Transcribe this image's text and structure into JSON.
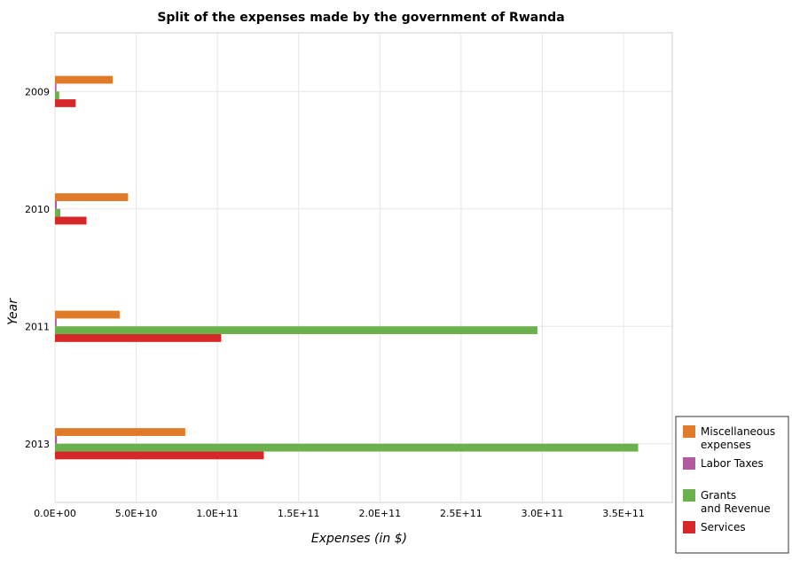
{
  "chart_data": {
    "type": "bar",
    "orientation": "horizontal",
    "title": "Split of the expenses made by the government of Rwanda",
    "xlabel": "Expenses (in $)",
    "ylabel": "Year",
    "categories": [
      "2009",
      "2010",
      "2011",
      "2013"
    ],
    "xlim": [
      0,
      380000000000
    ],
    "xticks": [
      0,
      50000000000,
      100000000000,
      150000000000,
      200000000000,
      250000000000,
      300000000000,
      350000000000
    ],
    "xtick_labels": [
      "0.0E+00",
      "5.0E+10",
      "1.0E+11",
      "1.5E+11",
      "2.0E+11",
      "2.5E+11",
      "3.0E+11",
      "3.5E+11"
    ],
    "grid": true,
    "legend_position": "bottom-right",
    "series": [
      {
        "name": "Miscellaneous expenses",
        "color": "#e07b2a",
        "values": [
          35500000000,
          45000000000,
          39800000000,
          80200000000
        ]
      },
      {
        "name": "Labor Taxes",
        "color": "#b05b9e",
        "values": [
          900000000,
          1100000000,
          1000000000,
          1200000000
        ]
      },
      {
        "name": "Grants and Revenue",
        "color": "#6ab04c",
        "values": [
          2600000000,
          3300000000,
          297000000000,
          359000000000
        ]
      },
      {
        "name": "Services",
        "color": "#d62828",
        "values": [
          12700000000,
          19400000000,
          102300000000,
          128500000000
        ]
      }
    ]
  }
}
